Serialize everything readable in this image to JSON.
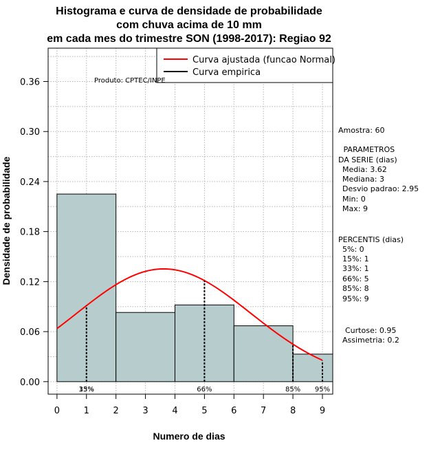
{
  "chart_data": {
    "type": "bar",
    "title_lines": [
      "Histograma e curva de densidade de probabilidade",
      "com chuva acima de 10 mm",
      "em cada mes do trimestre SON (1998-2017): Regiao 92"
    ],
    "xlabel": "Numero de dias",
    "ylabel": "Densidade de probabilidade",
    "xlim": [
      -0.3,
      9.35
    ],
    "ylim": [
      -0.015,
      0.4
    ],
    "xticks": [
      "0",
      "1",
      "2",
      "3",
      "4",
      "5",
      "6",
      "7",
      "8",
      "9"
    ],
    "yticks": [
      "0.00",
      "0.06",
      "0.12",
      "0.18",
      "0.24",
      "0.30",
      "0.36"
    ],
    "bins": [
      {
        "start": 0,
        "end": 2,
        "density": 0.225
      },
      {
        "start": 2,
        "end": 4,
        "density": 0.083
      },
      {
        "start": 4,
        "end": 6,
        "density": 0.092
      },
      {
        "start": 6,
        "end": 8,
        "density": 0.067
      },
      {
        "start": 8,
        "end": 9.35,
        "density": 0.033
      }
    ],
    "normal_fit": {
      "mean": 3.62,
      "sd": 2.95,
      "x_from": 0,
      "x_to": 9
    },
    "percentile_lines": [
      {
        "x": 1,
        "y": 0.091
      },
      {
        "x": 5,
        "y": 0.121
      },
      {
        "x": 8,
        "y": 0.045
      },
      {
        "x": 9,
        "y": 0.025
      }
    ],
    "percentile_labels": [
      {
        "x": 1,
        "label": "15%"
      },
      {
        "x": 1,
        "label": "33%"
      },
      {
        "x": 5,
        "label": "66%"
      },
      {
        "x": 8,
        "label": "85%"
      },
      {
        "x": 9,
        "label": "95%"
      }
    ],
    "legend": [
      {
        "label": "Curva ajustada (funcao Normal)",
        "color": "#ff0000"
      },
      {
        "label": "Curva empirica",
        "color": "#000000"
      }
    ],
    "colors": {
      "bar_fill": "#b7cdcd",
      "curve": "#ff0000",
      "grid": "#b3b3b3"
    },
    "credit": "Produto: CPTEC/INPE",
    "stats_lines": [
      "Amostra: 60",
      " PARAMETROS",
      "DA SERIE (dias)",
      "Media: 3.62",
      "Mediana: 3",
      "Desvio padrao: 2.95",
      "Min: 0",
      "Max: 9",
      "PERCENTIS (dias)",
      "5%: 0",
      "15%: 1",
      "33%: 1",
      "66%: 5",
      "85%: 8",
      "95%: 9",
      "Curtose: 0.95",
      "Assimetria: 0.2"
    ]
  }
}
